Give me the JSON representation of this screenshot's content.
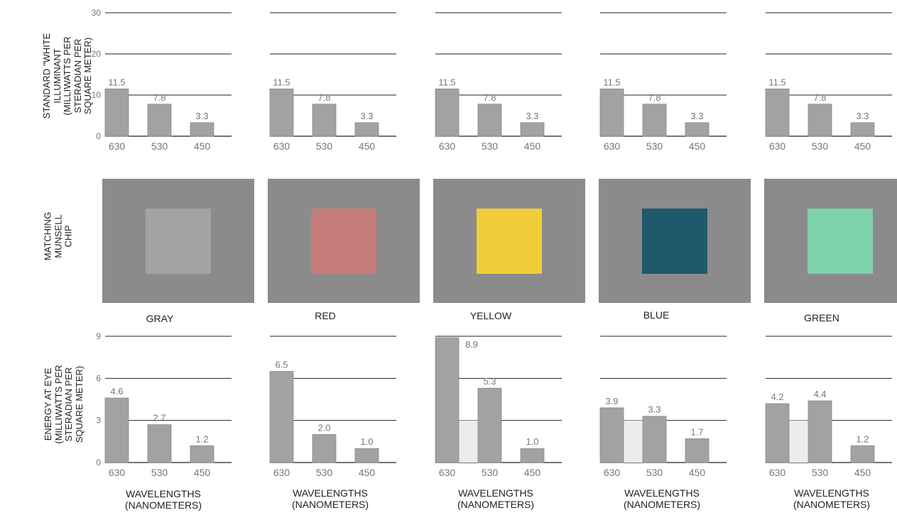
{
  "row_labels": {
    "top": [
      "STANDARD \"WHITE",
      "ILLUMINANT",
      "(MILLIWATTS PER",
      "STERADIAN PER",
      "SQUARE METER)"
    ],
    "middle": [
      "MATCHING",
      "MUNSELL",
      "CHIP"
    ],
    "bottom": [
      "ENERGY AT EYE",
      "(MILLIWATTS PER",
      "STERADIAN PER",
      "SQUARE METER)"
    ]
  },
  "x_axis_label": [
    "WAVELENGTHS",
    "(NANOMETERS)"
  ],
  "chips": [
    {
      "name": "GRAY",
      "color": "#a3a3a3"
    },
    {
      "name": "RED",
      "color": "#c47c78"
    },
    {
      "name": "YELLOW",
      "color": "#f1cd3a"
    },
    {
      "name": "BLUE",
      "color": "#1f5a6c"
    },
    {
      "name": "GREEN",
      "color": "#7fd3ac"
    }
  ],
  "colors": {
    "bar": "#a2a2a2",
    "surround": "#8b8b8b",
    "ghost_bar": "#ececec",
    "gridline": "#222222"
  },
  "chart_data": [
    {
      "type": "bar",
      "panel": "illuminant",
      "chip": "GRAY",
      "categories": [
        "630",
        "530",
        "450"
      ],
      "values": [
        11.5,
        7.8,
        3.3
      ],
      "labels": [
        "11.5",
        "7.8",
        "3.3"
      ],
      "ylim": [
        0,
        30
      ],
      "yticks": [
        "0",
        "10",
        "20",
        "30"
      ]
    },
    {
      "type": "bar",
      "panel": "illuminant",
      "chip": "RED",
      "categories": [
        "630",
        "530",
        "450"
      ],
      "values": [
        11.5,
        7.8,
        3.3
      ],
      "labels": [
        "11.5",
        "7.8",
        "3.3"
      ],
      "ylim": [
        0,
        30
      ],
      "yticks": []
    },
    {
      "type": "bar",
      "panel": "illuminant",
      "chip": "YELLOW",
      "categories": [
        "630",
        "530",
        "450"
      ],
      "values": [
        11.5,
        7.8,
        3.3
      ],
      "labels": [
        "11.5",
        "7.8",
        "3.3"
      ],
      "ylim": [
        0,
        30
      ],
      "yticks": []
    },
    {
      "type": "bar",
      "panel": "illuminant",
      "chip": "BLUE",
      "categories": [
        "630",
        "530",
        "450"
      ],
      "values": [
        11.5,
        7.8,
        3.3
      ],
      "labels": [
        "11.5",
        "7.8",
        "3.3"
      ],
      "ylim": [
        0,
        30
      ],
      "yticks": []
    },
    {
      "type": "bar",
      "panel": "illuminant",
      "chip": "GREEN",
      "categories": [
        "630",
        "530",
        "450"
      ],
      "values": [
        11.5,
        7.8,
        3.3
      ],
      "labels": [
        "11.5",
        "7.8",
        "3.3"
      ],
      "ylim": [
        0,
        30
      ],
      "yticks": []
    },
    {
      "type": "bar",
      "panel": "energy",
      "chip": "GRAY",
      "categories": [
        "630",
        "530",
        "450"
      ],
      "values": [
        4.6,
        2.7,
        1.2
      ],
      "labels": [
        "4.6",
        "2.7",
        "1.2"
      ],
      "ylim": [
        0,
        9
      ],
      "yticks": [
        "0",
        "3",
        "6",
        "9"
      ]
    },
    {
      "type": "bar",
      "panel": "energy",
      "chip": "RED",
      "categories": [
        "630",
        "530",
        "450"
      ],
      "values": [
        6.5,
        2.0,
        1.0
      ],
      "labels": [
        "6.5",
        "2.0",
        "1.0"
      ],
      "ylim": [
        0,
        9
      ],
      "yticks": []
    },
    {
      "type": "bar",
      "panel": "energy",
      "chip": "YELLOW",
      "categories": [
        "630",
        "530",
        "450"
      ],
      "values": [
        8.9,
        5.3,
        1.0
      ],
      "labels": [
        "8.9",
        "5.3",
        "1.0"
      ],
      "ylim": [
        0,
        9
      ],
      "yticks": [],
      "ghost_gap": true
    },
    {
      "type": "bar",
      "panel": "energy",
      "chip": "BLUE",
      "categories": [
        "630",
        "530",
        "450"
      ],
      "values": [
        3.9,
        3.3,
        1.7
      ],
      "labels": [
        "3.9",
        "3.3",
        "1.7"
      ],
      "ylim": [
        0,
        9
      ],
      "yticks": [],
      "ghost_gap": true
    },
    {
      "type": "bar",
      "panel": "energy",
      "chip": "GREEN",
      "categories": [
        "630",
        "530",
        "450"
      ],
      "values": [
        4.2,
        4.4,
        1.2
      ],
      "labels": [
        "4.2",
        "4.4",
        "1.2"
      ],
      "ylim": [
        0,
        9
      ],
      "yticks": [],
      "ghost_gap": true
    }
  ]
}
